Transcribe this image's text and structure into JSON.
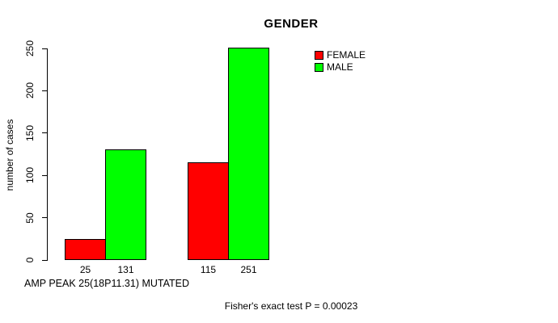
{
  "chart_data": {
    "type": "bar",
    "title": "GENDER",
    "ylabel": "number of cases",
    "xlabel": "AMP PEAK 25(18P11.31) MUTATED",
    "annotation": "Fisher's exact test P = 0.00023",
    "ylim": [
      0,
      250
    ],
    "yticks": [
      0,
      50,
      100,
      150,
      200,
      250
    ],
    "grid": false,
    "legend_position": "top-right",
    "series": [
      {
        "name": "FEMALE",
        "color": "#ff0000",
        "values": [
          25,
          115
        ]
      },
      {
        "name": "MALE",
        "color": "#00ff00",
        "values": [
          131,
          251
        ]
      }
    ],
    "bar_labels": [
      "25",
      "131",
      "115",
      "251"
    ]
  }
}
